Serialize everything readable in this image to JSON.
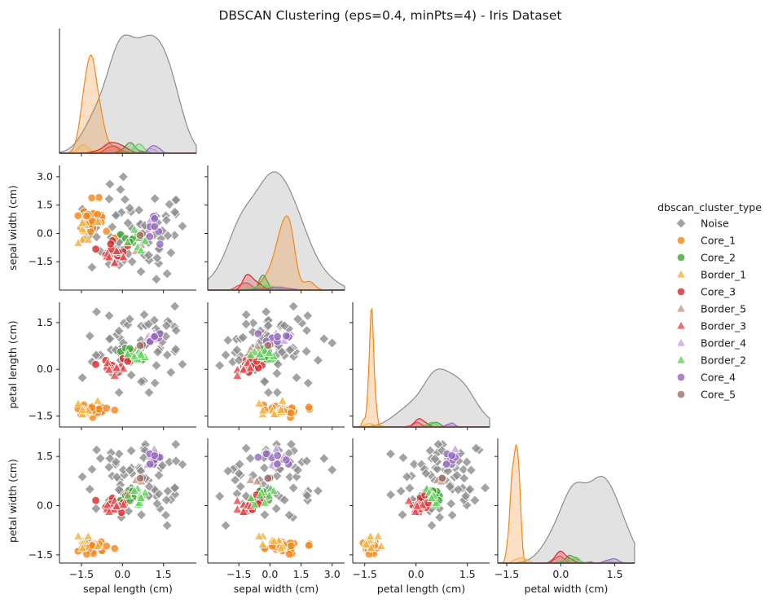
{
  "chart_data": {
    "type": "scatter",
    "title": "DBSCAN Clustering (eps=0.4, minPts=4) - Iris Dataset",
    "variables": [
      "sepal length (cm)",
      "sepal width (cm)",
      "petal length (cm)",
      "petal width (cm)"
    ],
    "ticks": [
      [
        -1.5,
        0.0,
        1.5
      ],
      [
        -1.5,
        0.0,
        1.5,
        3.0
      ],
      [
        -1.5,
        0.0,
        1.5
      ],
      [
        -1.5,
        0.0,
        1.5
      ]
    ],
    "tick_labels": [
      [
        "−1.5",
        "0.0",
        "1.5"
      ],
      [
        "−1.5",
        "0.0",
        "1.5",
        "3.0"
      ],
      [
        "−1.5",
        "0.0",
        "1.5"
      ],
      [
        "−1.5",
        "0.0",
        "1.5"
      ]
    ],
    "ranges": [
      [
        -2.3,
        2.7
      ],
      [
        -3.0,
        3.6
      ],
      [
        -1.85,
        2.15
      ],
      [
        -1.75,
        2.05
      ]
    ],
    "legend": {
      "title": "dbscan_cluster_type",
      "placement": "right",
      "items": [
        {
          "label": "Noise",
          "color": "#8c8c8c",
          "marker": "diamond"
        },
        {
          "label": "Core_1",
          "color": "#f58518",
          "marker": "circle"
        },
        {
          "label": "Core_2",
          "color": "#3fa535",
          "marker": "circle"
        },
        {
          "label": "Border_1",
          "color": "#f5b23c",
          "marker": "triangle"
        },
        {
          "label": "Core_3",
          "color": "#d62728",
          "marker": "circle"
        },
        {
          "label": "Border_5",
          "color": "#c49a86",
          "marker": "triangle"
        },
        {
          "label": "Border_3",
          "color": "#e8474c",
          "marker": "triangle"
        },
        {
          "label": "Border_4",
          "color": "#c9a3e3",
          "marker": "triangle"
        },
        {
          "label": "Border_2",
          "color": "#5fd35a",
          "marker": "triangle"
        },
        {
          "label": "Core_4",
          "color": "#9467bd",
          "marker": "circle"
        },
        {
          "label": "Core_5",
          "color": "#a0706a",
          "marker": "circle"
        }
      ]
    },
    "clusters": [
      {
        "name": "Noise",
        "n": 70,
        "mean": [
          0.6,
          0.0,
          0.7,
          0.7
        ],
        "sd": [
          0.9,
          1.2,
          0.7,
          0.7
        ]
      },
      {
        "name": "Core_1",
        "n": 32,
        "mean": [
          -1.1,
          0.75,
          -1.3,
          -1.25
        ],
        "sd": [
          0.3,
          0.5,
          0.07,
          0.1
        ]
      },
      {
        "name": "Core_2",
        "n": 9,
        "mean": [
          0.3,
          -0.3,
          0.5,
          0.35
        ],
        "sd": [
          0.2,
          0.2,
          0.1,
          0.12
        ]
      },
      {
        "name": "Border_1",
        "n": 8,
        "mean": [
          -1.4,
          0.1,
          -1.35,
          -1.2
        ],
        "sd": [
          0.3,
          0.5,
          0.12,
          0.15
        ]
      },
      {
        "name": "Core_3",
        "n": 12,
        "mean": [
          -0.25,
          -0.9,
          0.15,
          0.05
        ],
        "sd": [
          0.25,
          0.3,
          0.12,
          0.12
        ]
      },
      {
        "name": "Border_5",
        "n": 2,
        "mean": [
          0.6,
          -0.6,
          0.7,
          0.7
        ],
        "sd": [
          0.1,
          0.1,
          0.05,
          0.05
        ]
      },
      {
        "name": "Border_3",
        "n": 8,
        "mean": [
          -0.3,
          -1.2,
          0.05,
          -0.05
        ],
        "sd": [
          0.25,
          0.3,
          0.15,
          0.15
        ]
      },
      {
        "name": "Border_4",
        "n": 5,
        "mean": [
          1.0,
          0.3,
          1.05,
          1.5
        ],
        "sd": [
          0.1,
          0.4,
          0.1,
          0.1
        ]
      },
      {
        "name": "Border_2",
        "n": 8,
        "mean": [
          0.6,
          -0.4,
          0.45,
          0.3
        ],
        "sd": [
          0.25,
          0.3,
          0.15,
          0.15
        ]
      },
      {
        "name": "Core_4",
        "n": 7,
        "mean": [
          1.1,
          0.2,
          1.0,
          1.45
        ],
        "sd": [
          0.12,
          0.3,
          0.08,
          0.1
        ]
      },
      {
        "name": "Core_5",
        "n": 2,
        "mean": [
          0.7,
          -0.2,
          0.75,
          0.8
        ],
        "sd": [
          0.1,
          0.1,
          0.05,
          0.05
        ]
      }
    ]
  }
}
